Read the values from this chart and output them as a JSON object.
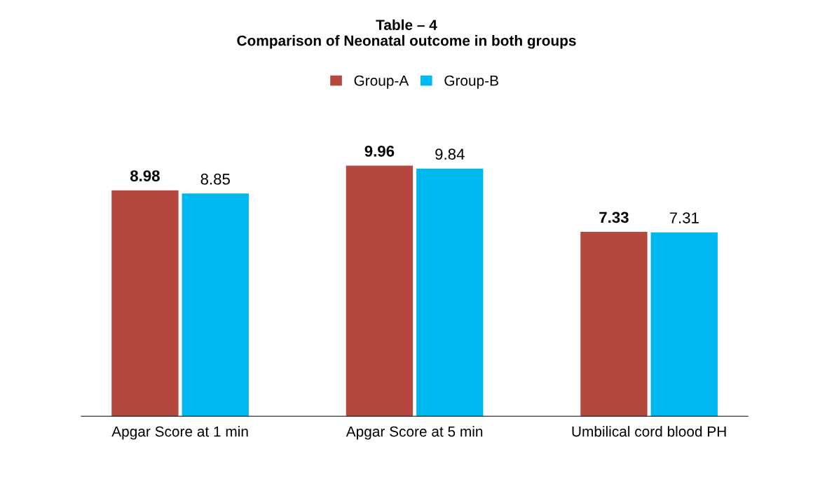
{
  "chart_data": {
    "type": "bar",
    "title": "Table – 4\nComparison of Neonatal outcome in both groups",
    "categories": [
      "Apgar Score at 1 min",
      "Apgar Score at 5 min",
      "Umbilical cord blood PH"
    ],
    "series": [
      {
        "name": "Group-A",
        "color": "#b5473f",
        "values": [
          8.98,
          9.96,
          7.33
        ]
      },
      {
        "name": "Group-B",
        "color": "#00b8f0",
        "values": [
          8.85,
          9.84,
          7.31
        ]
      }
    ],
    "data_labels": true,
    "legend": "top",
    "grid": false
  }
}
